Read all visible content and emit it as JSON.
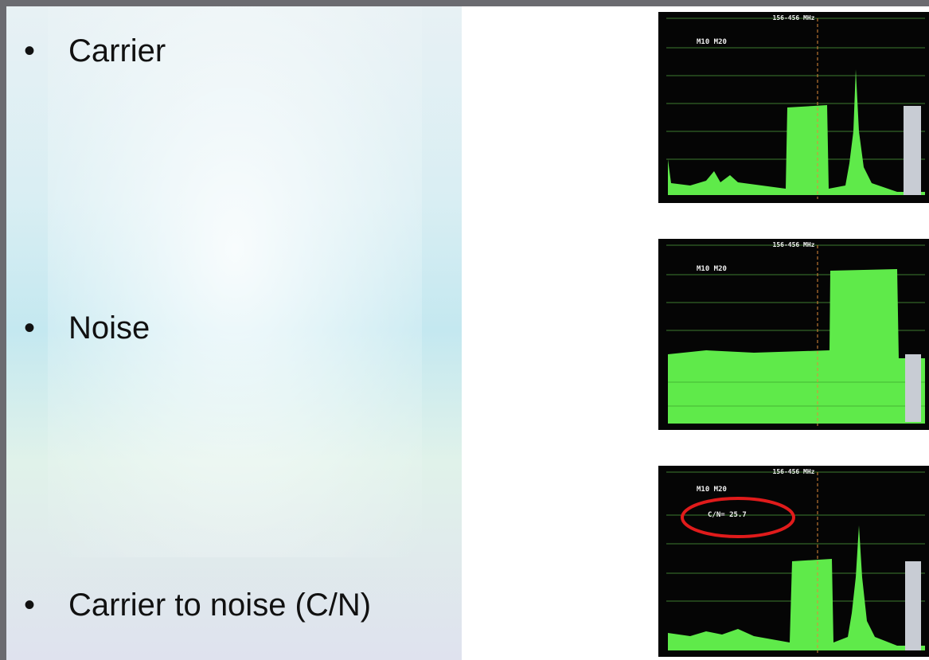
{
  "bullets": [
    "Carrier",
    "Noise",
    "Carrier to noise (C/N)"
  ],
  "screens": [
    {
      "header": "156-456 MHz",
      "markers": "M10 M20"
    },
    {
      "header": "156-456 MHz",
      "markers": "M10 M20"
    },
    {
      "header": "156-456 MHz",
      "markers": "M10 M20",
      "readout": "C/N= 25.7"
    }
  ]
}
